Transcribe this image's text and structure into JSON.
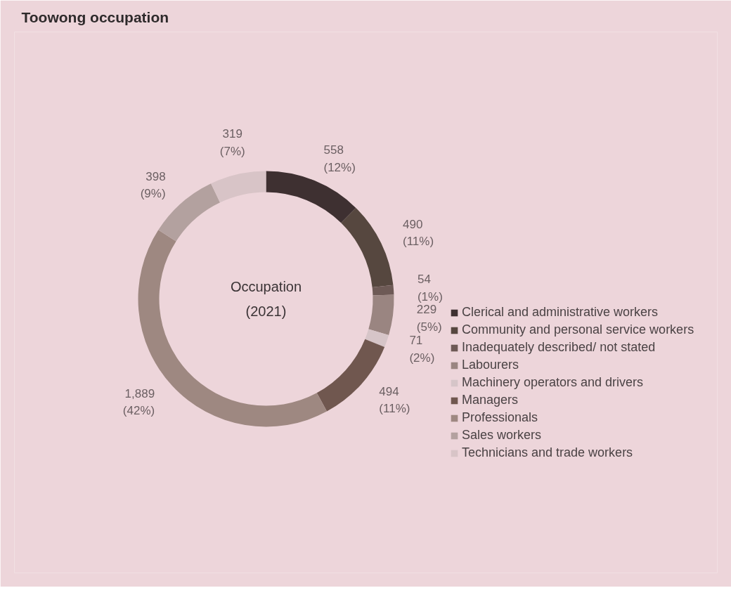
{
  "chart_data": {
    "type": "donut",
    "title": "Toowong occupation",
    "categories": [
      "Clerical and administrative workers",
      "Community and personal service workers",
      "Inadequately described/ not stated",
      "Labourers",
      "Machinery operators and drivers",
      "Managers",
      "Professionals",
      "Sales workers",
      "Technicians and trade workers"
    ],
    "values": [
      558,
      490,
      54,
      229,
      71,
      494,
      1889,
      398,
      319
    ],
    "value_labels": [
      "558\n(12%)",
      "490\n(11%)",
      "54\n(1%)",
      "229\n(5%)",
      "71\n(2%)",
      "494\n(11%)",
      "1,889\n(42%)",
      "398\n(9%)",
      "319\n(7%)"
    ],
    "colors": [
      "#3e3031",
      "#56473f",
      "#6e5a56",
      "#9a8581",
      "#d6c5c8",
      "#70574f",
      "#9e8881",
      "#b3a19f",
      "#d8c4c7"
    ],
    "annotations": [
      "Occupation\n(2021)"
    ],
    "legend": "right"
  }
}
